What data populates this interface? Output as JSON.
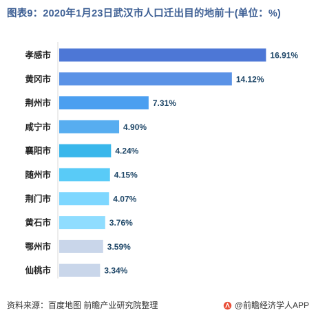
{
  "title": "图表9：2020年1月23日武汉市人口迁出目的地前十(单位：%)",
  "footer": {
    "source": "资料来源：百度地图 前瞻产业研究院整理",
    "brand": "@前瞻经济学人APP"
  },
  "chart_data": {
    "type": "bar",
    "orientation": "horizontal",
    "categories": [
      "孝感市",
      "黄冈市",
      "荆州市",
      "咸宁市",
      "襄阳市",
      "随州市",
      "荆门市",
      "黄石市",
      "鄂州市",
      "仙桃市"
    ],
    "values": [
      16.91,
      14.12,
      7.31,
      4.9,
      4.24,
      4.15,
      4.07,
      3.76,
      3.59,
      3.34
    ],
    "value_labels": [
      "16.91%",
      "14.12%",
      "7.31%",
      "4.90%",
      "4.24%",
      "4.15%",
      "4.07%",
      "3.76%",
      "3.59%",
      "3.34%"
    ],
    "colors": [
      "#4d77d6",
      "#5a92e6",
      "#4b9ff0",
      "#57adf0",
      "#39b7eb",
      "#59cbf7",
      "#7ed7ff",
      "#8fddff",
      "#c9d6ea",
      "#c9d6ea"
    ],
    "xlim": [
      0,
      17
    ],
    "grid": false,
    "legend": false,
    "title": "",
    "xlabel": "",
    "ylabel": ""
  }
}
